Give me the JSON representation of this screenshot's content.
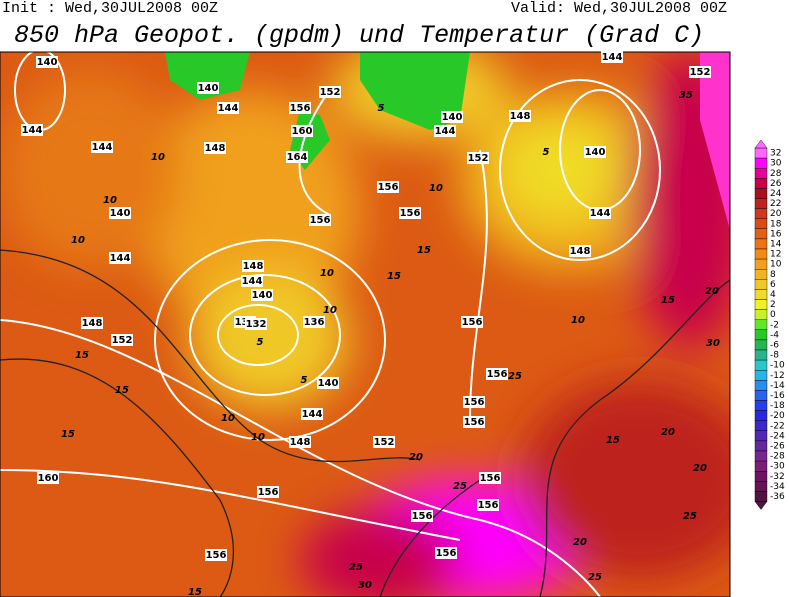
{
  "header": {
    "init": "Init : Wed,30JUL2008 00Z",
    "valid": "Valid: Wed,30JUL2008 00Z",
    "title": "850 hPa Geopot. (gpdm) und Temperatur (Grad C)"
  },
  "colorbar": {
    "levels": [
      32,
      30,
      28,
      26,
      24,
      22,
      20,
      18,
      16,
      14,
      12,
      10,
      8,
      6,
      4,
      2,
      0,
      -2,
      -4,
      -6,
      -8,
      -10,
      -12,
      -14,
      -16,
      -18,
      -20,
      -22,
      -24,
      -26,
      -28,
      -30,
      -32,
      -34,
      -36
    ],
    "colors": [
      "#ff66ff",
      "#ff00ff",
      "#e6009b",
      "#c8004b",
      "#aa0f1e",
      "#be231e",
      "#cd371e",
      "#d74b14",
      "#e15f14",
      "#eb7314",
      "#f08c14",
      "#f0a01e",
      "#f0b41e",
      "#f0c828",
      "#f0dc28",
      "#f0f028",
      "#c8f028",
      "#64e628",
      "#28c828",
      "#28b450",
      "#28b48c",
      "#28c8c8",
      "#28b4e6",
      "#288cf0",
      "#2864f0",
      "#283cf0",
      "#2828dc",
      "#3c28c8",
      "#5028b4",
      "#6428a0",
      "#78288c",
      "#7a1e78",
      "#6e1464",
      "#641450",
      "#501440"
    ]
  },
  "contour_labels": [
    140,
    144,
    144,
    140,
    144,
    148,
    152,
    160,
    156,
    156,
    140,
    144,
    148,
    160,
    164,
    156,
    152,
    148,
    144,
    140,
    136,
    132,
    136,
    140,
    144,
    148,
    152,
    156,
    156,
    156,
    140,
    144,
    152,
    148,
    140,
    144,
    148,
    156,
    156,
    156,
    156,
    156,
    156,
    156,
    156,
    144,
    152,
    10,
    10,
    10,
    15,
    15,
    15,
    10,
    10,
    5,
    5,
    10,
    10,
    15,
    15,
    20,
    25,
    25,
    20,
    25,
    25,
    20,
    20,
    15,
    15,
    20,
    30,
    10,
    5,
    35,
    30,
    25,
    15,
    5,
    10
  ]
}
